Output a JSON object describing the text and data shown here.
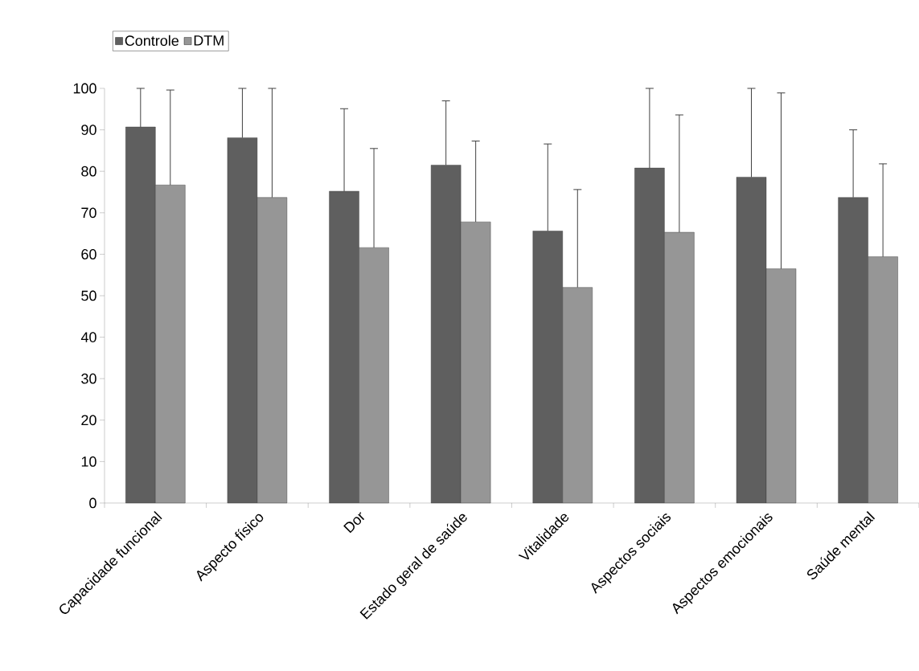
{
  "chart_data": {
    "type": "bar",
    "categories": [
      "Capacidade funcional",
      "Aspecto físico",
      "Dor",
      "Estado geral de saúde",
      "Vitalidade",
      "Aspectos sociais",
      "Aspectos emocionais",
      "Saúde mental"
    ],
    "series": [
      {
        "name": "Controle",
        "color": "#5f5f5f",
        "values": [
          90.7,
          88.1,
          75.2,
          81.5,
          65.6,
          80.8,
          78.6,
          73.7
        ],
        "errors": [
          [
            90.7,
            100
          ],
          [
            88.1,
            100
          ],
          [
            75.2,
            95.1
          ],
          [
            81.5,
            97
          ],
          [
            65.6,
            86.6
          ],
          [
            80.8,
            100
          ],
          [
            78.6,
            100
          ],
          [
            73.7,
            90
          ]
        ]
      },
      {
        "name": "DTM",
        "color": "#969696",
        "values": [
          76.7,
          73.7,
          61.6,
          67.8,
          52,
          65.3,
          56.5,
          59.4
        ],
        "errors": [
          [
            76.7,
            99.6
          ],
          [
            73.7,
            100
          ],
          [
            61.6,
            85.5
          ],
          [
            67.8,
            87.3
          ],
          [
            52,
            75.6
          ],
          [
            65.3,
            93.6
          ],
          [
            56.5,
            98.9
          ],
          [
            59.4,
            81.8
          ]
        ]
      }
    ],
    "ylim": [
      0,
      100
    ],
    "yticks": [
      0,
      10,
      20,
      30,
      40,
      50,
      60,
      70,
      80,
      90,
      100
    ],
    "legend": "top left",
    "grid": false
  }
}
